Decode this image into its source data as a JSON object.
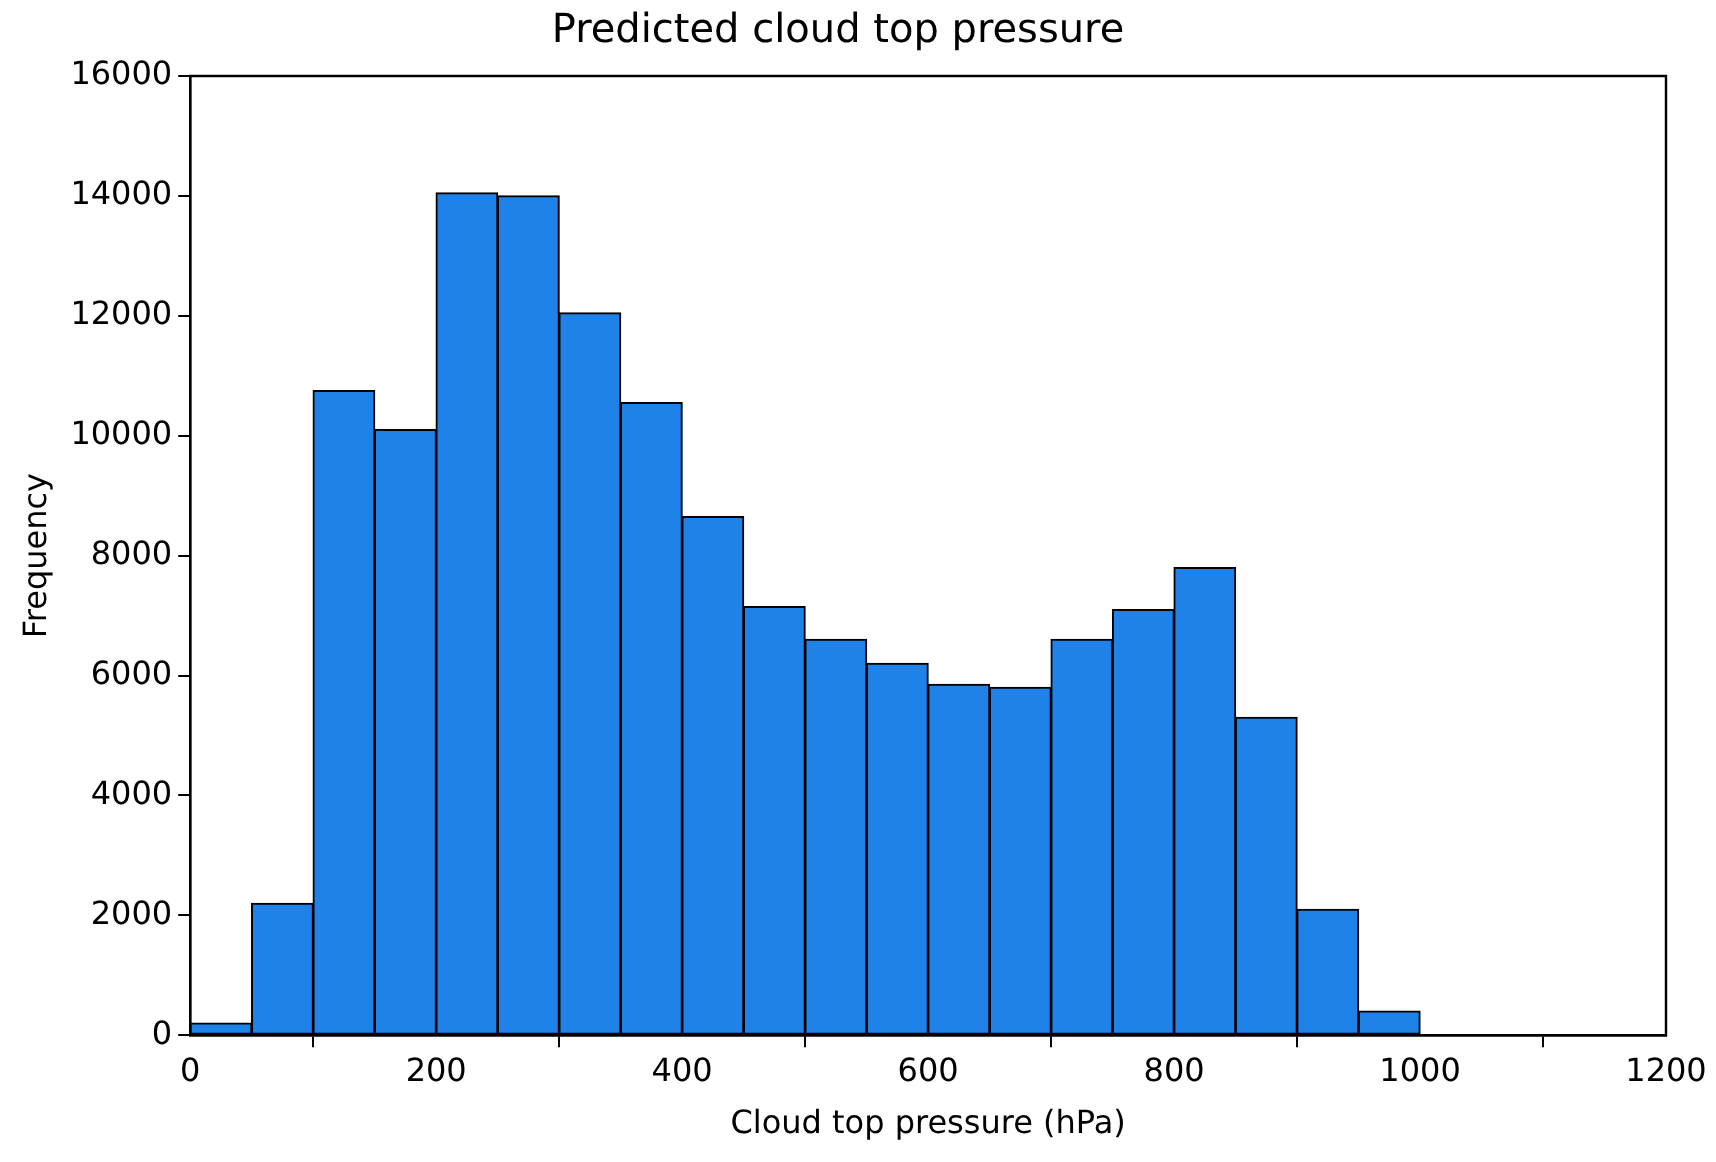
{
  "chart_data": {
    "type": "histogram",
    "title": "Predicted cloud top pressure",
    "xlabel": "Cloud top pressure (hPa)",
    "ylabel": "Frequency",
    "bins": [
      0,
      50,
      100,
      150,
      200,
      250,
      300,
      350,
      400,
      450,
      500,
      550,
      600,
      650,
      700,
      750,
      800,
      850,
      900,
      950,
      1000
    ],
    "values": [
      200,
      2200,
      10750,
      10100,
      14050,
      14000,
      12050,
      10550,
      8650,
      7150,
      6600,
      6200,
      5850,
      5800,
      6600,
      7100,
      7800,
      5300,
      2100,
      400
    ],
    "color": "#1e82e8",
    "xlim": [
      0,
      1200
    ],
    "xticks": [
      0,
      200,
      400,
      600,
      800,
      1000,
      1200
    ],
    "ylim": [
      0,
      16000
    ],
    "yticks": [
      0,
      2000,
      4000,
      6000,
      8000,
      10000,
      12000,
      14000,
      16000
    ],
    "grid": false,
    "legend": false
  }
}
